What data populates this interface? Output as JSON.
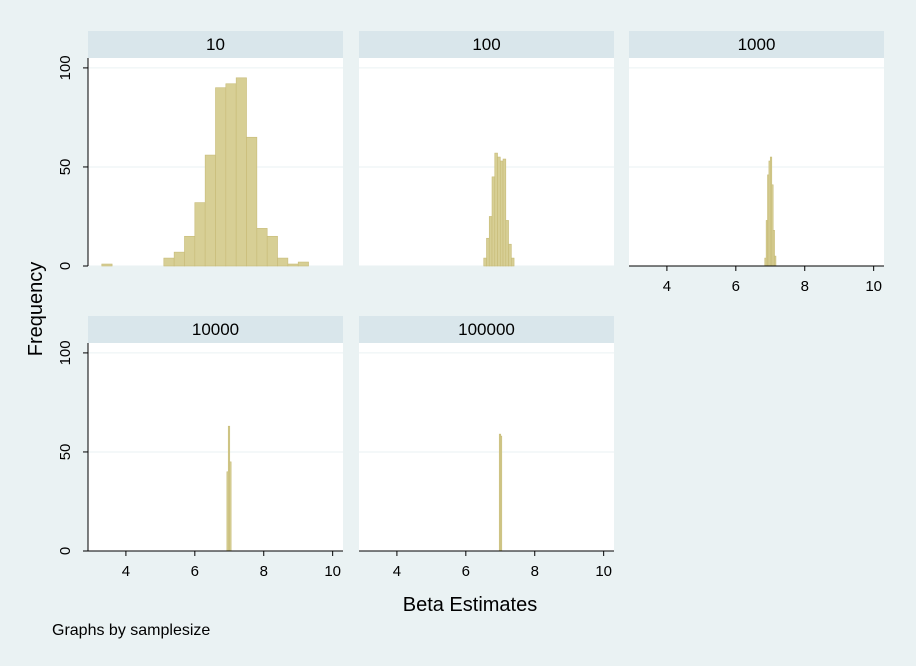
{
  "chart_data": {
    "type": "bar",
    "subtype": "histogram-small-multiples",
    "by_variable_note": "Graphs by samplesize",
    "xlabel": "Beta Estimates",
    "ylabel": "Frequency",
    "xlim": [
      2.9,
      10.3
    ],
    "ylim": [
      0,
      105
    ],
    "xticks": [
      4,
      6,
      8,
      10
    ],
    "yticks": [
      0,
      50,
      100
    ],
    "grid": true,
    "panels": [
      {
        "title": "10",
        "bins": [
          {
            "x0": 3.3,
            "x1": 3.6,
            "y": 1
          },
          {
            "x0": 5.1,
            "x1": 5.4,
            "y": 4
          },
          {
            "x0": 5.4,
            "x1": 5.7,
            "y": 7
          },
          {
            "x0": 5.7,
            "x1": 6.0,
            "y": 15
          },
          {
            "x0": 6.0,
            "x1": 6.3,
            "y": 32
          },
          {
            "x0": 6.3,
            "x1": 6.6,
            "y": 56
          },
          {
            "x0": 6.6,
            "x1": 6.9,
            "y": 90
          },
          {
            "x0": 6.9,
            "x1": 7.2,
            "y": 92
          },
          {
            "x0": 7.2,
            "x1": 7.5,
            "y": 95
          },
          {
            "x0": 7.5,
            "x1": 7.8,
            "y": 65
          },
          {
            "x0": 7.8,
            "x1": 8.1,
            "y": 19
          },
          {
            "x0": 8.1,
            "x1": 8.4,
            "y": 15
          },
          {
            "x0": 8.4,
            "x1": 8.7,
            "y": 4
          },
          {
            "x0": 8.7,
            "x1": 9.0,
            "y": 1
          },
          {
            "x0": 9.0,
            "x1": 9.3,
            "y": 2
          }
        ]
      },
      {
        "title": "100",
        "bins": [
          {
            "x0": 6.52,
            "x1": 6.6,
            "y": 4
          },
          {
            "x0": 6.6,
            "x1": 6.68,
            "y": 14
          },
          {
            "x0": 6.68,
            "x1": 6.76,
            "y": 25
          },
          {
            "x0": 6.76,
            "x1": 6.84,
            "y": 45
          },
          {
            "x0": 6.84,
            "x1": 6.92,
            "y": 57
          },
          {
            "x0": 6.92,
            "x1": 7.0,
            "y": 55
          },
          {
            "x0": 7.0,
            "x1": 7.08,
            "y": 53
          },
          {
            "x0": 7.08,
            "x1": 7.16,
            "y": 54
          },
          {
            "x0": 7.16,
            "x1": 7.24,
            "y": 23
          },
          {
            "x0": 7.24,
            "x1": 7.32,
            "y": 11
          },
          {
            "x0": 7.32,
            "x1": 7.4,
            "y": 4
          }
        ]
      },
      {
        "title": "1000",
        "bins": [
          {
            "x0": 6.84,
            "x1": 6.88,
            "y": 4
          },
          {
            "x0": 6.88,
            "x1": 6.92,
            "y": 23
          },
          {
            "x0": 6.92,
            "x1": 6.96,
            "y": 46
          },
          {
            "x0": 6.96,
            "x1": 7.0,
            "y": 53
          },
          {
            "x0": 7.0,
            "x1": 7.04,
            "y": 55
          },
          {
            "x0": 7.04,
            "x1": 7.08,
            "y": 41
          },
          {
            "x0": 7.08,
            "x1": 7.12,
            "y": 18
          },
          {
            "x0": 7.12,
            "x1": 7.16,
            "y": 5
          }
        ]
      },
      {
        "title": "10000",
        "bins": [
          {
            "x0": 6.93,
            "x1": 6.97,
            "y": 40
          },
          {
            "x0": 6.97,
            "x1": 7.01,
            "y": 63
          },
          {
            "x0": 7.01,
            "x1": 7.05,
            "y": 45
          }
        ]
      },
      {
        "title": "100000",
        "bins": [
          {
            "x0": 6.97,
            "x1": 7.0,
            "y": 59
          },
          {
            "x0": 7.0,
            "x1": 7.03,
            "y": 58
          }
        ]
      }
    ]
  }
}
